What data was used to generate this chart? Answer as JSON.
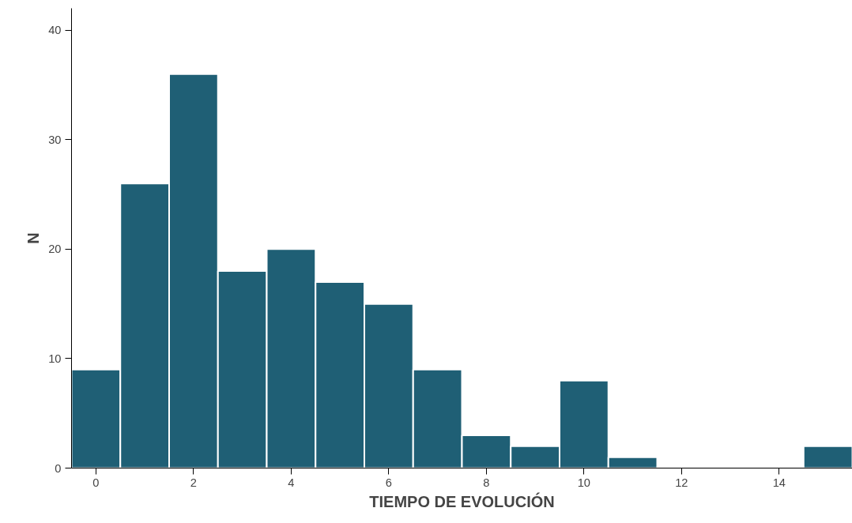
{
  "chart_data": {
    "type": "histogram",
    "xlabel": "TIEMPO DE EVOLUCIÓN",
    "ylabel": "N",
    "bins": [
      -0.5,
      0.5,
      1.5,
      2.5,
      3.5,
      4.5,
      5.5,
      6.5,
      7.5,
      8.5,
      9.5,
      10.5,
      11.5,
      12.5,
      13.5,
      14.5,
      15.5
    ],
    "values": [
      9,
      26,
      36,
      18,
      20,
      17,
      15,
      9,
      3,
      2,
      8,
      1,
      0,
      0,
      0,
      2
    ],
    "color": "#1f5f75",
    "xlim": [
      -0.5,
      15.5
    ],
    "xticks": [
      0,
      2,
      4,
      6,
      8,
      10,
      12,
      14
    ],
    "ylim": [
      0,
      42
    ],
    "yticks": [
      0,
      10,
      20,
      30,
      40
    ],
    "grid": false
  }
}
